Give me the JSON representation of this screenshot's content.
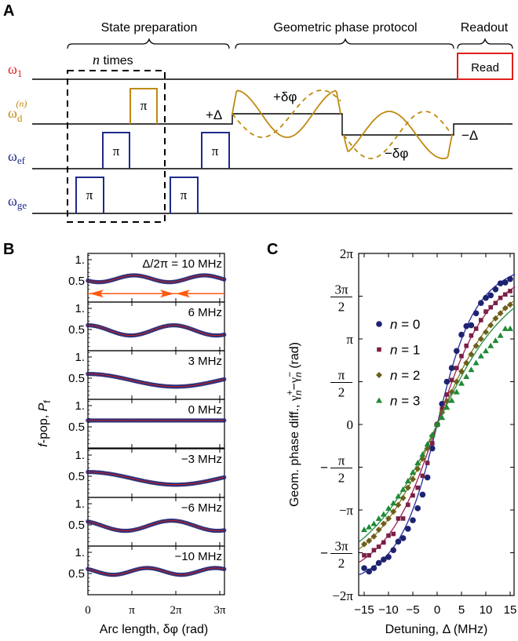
{
  "panels": {
    "a": "A",
    "b": "B",
    "c": "C"
  },
  "diagram": {
    "sections": [
      "State preparation",
      "Geometric phase protocol",
      "Readout"
    ],
    "repeat_label": {
      "var": "n",
      "text": " times"
    },
    "channels": [
      {
        "symbol": "ω",
        "sub": "1",
        "sup": "",
        "color": "#e0201c"
      },
      {
        "symbol": "ω",
        "sub": "d",
        "sup": "(n)",
        "color": "#c08a10"
      },
      {
        "symbol": "ω",
        "sub": "ef",
        "sup": "",
        "color": "#1e2a8a"
      },
      {
        "symbol": "ω",
        "sub": "ge",
        "sup": "",
        "color": "#1e2a8a"
      }
    ],
    "pulse_label": "π",
    "read_label": "Read",
    "plus_delta": "+Δ",
    "minus_delta": "−Δ",
    "plus_dphi": "+δφ",
    "minus_dphi": "−δφ",
    "pulse_color": "#c08a10",
    "read_color": "#e0201c"
  },
  "chart_data": [
    {
      "type": "scatter",
      "panel": "B",
      "title": "",
      "xlabel": "Arc length, δφ (rad)",
      "ylabel_italic": "f",
      "ylabel_mid": "-pop, ",
      "ylabel_sym": "P",
      "ylabel_sub": "f",
      "xlim_pi": [
        0,
        3.1
      ],
      "ylim": [
        0,
        1.15
      ],
      "x_ticks": [
        {
          "value_pi": 0,
          "label": "0"
        },
        {
          "value_pi": 1,
          "label": "π"
        },
        {
          "value_pi": 2,
          "label": "2π"
        },
        {
          "value_pi": 3,
          "label": "3π"
        }
      ],
      "y_ticks": [
        {
          "value": 0.5,
          "label": "0.5"
        },
        {
          "value": 1,
          "label": "1."
        }
      ],
      "marker_color": "#1e2370",
      "fit_color": "#d02020",
      "arrow_color": "#ff5a10",
      "subplots": [
        {
          "label": "Δ/2π = 10 MHz",
          "detuning_MHz": 10,
          "mean": 0.55,
          "amp": 0.08,
          "period_pi": 1.6,
          "peak_pi": 1.05
        },
        {
          "label": "6 MHz",
          "detuning_MHz": 6,
          "mean": 0.48,
          "amp": 0.12,
          "period_pi": 1.95,
          "peak_pi": 0.0
        },
        {
          "label": "3 MHz",
          "detuning_MHz": 3,
          "mean": 0.45,
          "amp": 0.15,
          "period_pi": 4.0,
          "peak_pi": 0.0
        },
        {
          "label": "0 MHz",
          "detuning_MHz": 0,
          "mean": 0.65,
          "amp": 0.0,
          "period_pi": 2.0,
          "peak_pi": 0.0
        },
        {
          "label": "−3 MHz",
          "detuning_MHz": -3,
          "mean": 0.45,
          "amp": 0.15,
          "period_pi": 4.0,
          "peak_pi": 0.0
        },
        {
          "label": "−6 MHz",
          "detuning_MHz": -6,
          "mean": 0.48,
          "amp": 0.12,
          "period_pi": 2.1,
          "peak_pi": 1.9
        },
        {
          "label": "−10 MHz",
          "detuning_MHz": -10,
          "mean": 0.55,
          "amp": 0.08,
          "period_pi": 1.55,
          "peak_pi": 1.35
        }
      ]
    },
    {
      "type": "scatter",
      "panel": "C",
      "xlabel": "Detuning, Δ (MHz)",
      "ylabel": {
        "prefix": "Geom. phase diff., ",
        "g": "γ",
        "sup1": "+",
        "sub1": "n",
        "minus": "−",
        "sup2": "−",
        "sub2": "n",
        "suffix": " (rad)"
      },
      "xlim": [
        -16,
        16
      ],
      "ylim_pi": [
        -2,
        2
      ],
      "x_ticks": [
        {
          "value": -15,
          "label": "−15"
        },
        {
          "value": -10,
          "label": "−10"
        },
        {
          "value": -5,
          "label": "−5"
        },
        {
          "value": 0,
          "label": "0"
        },
        {
          "value": 5,
          "label": "5"
        },
        {
          "value": 10,
          "label": "10"
        },
        {
          "value": 15,
          "label": "15"
        }
      ],
      "y_ticks": [
        {
          "value_pi": 2,
          "label": "2π"
        },
        {
          "value_pi": 1.5,
          "sign": "",
          "num": "3π",
          "den": "2"
        },
        {
          "value_pi": 1,
          "label": "π"
        },
        {
          "value_pi": 0.5,
          "sign": "",
          "num": "π",
          "den": "2"
        },
        {
          "value_pi": 0,
          "label": "0"
        },
        {
          "value_pi": -0.5,
          "sign": "−",
          "num": "π",
          "den": "2"
        },
        {
          "value_pi": -1,
          "label": "−π"
        },
        {
          "value_pi": -1.5,
          "sign": "−",
          "num": "3π",
          "den": "2"
        },
        {
          "value_pi": -2,
          "label": "−2π"
        }
      ],
      "x": [
        -15,
        -14,
        -13,
        -12,
        -11,
        -10,
        -9,
        -8,
        -7,
        -6,
        -5,
        -4,
        -3,
        -2,
        -1,
        0,
        1,
        2,
        3,
        4,
        5,
        6,
        7,
        8,
        9,
        10,
        11,
        12,
        13,
        14,
        15
      ],
      "series": [
        {
          "name": "n = 0",
          "var": "n",
          "eq": " = 0",
          "marker": "circle",
          "color": "#1e2370",
          "line_color": "#2a2aa0",
          "fit_c": 8.7,
          "values_pi": [
            -1.68,
            -1.72,
            -1.68,
            -1.62,
            -1.58,
            -1.55,
            -1.47,
            -1.37,
            -1.33,
            -1.22,
            -1.12,
            -0.98,
            -0.82,
            -0.62,
            -0.28,
            0.0,
            0.24,
            0.5,
            0.66,
            0.86,
            1.05,
            1.15,
            1.16,
            1.3,
            1.42,
            1.48,
            1.51,
            1.58,
            1.65,
            1.66,
            1.7
          ]
        },
        {
          "name": "n = 1",
          "var": "n",
          "eq": " = 1",
          "marker": "square",
          "color": "#7a1f45",
          "line_color": "#a0205a",
          "fit_c": 11.8,
          "values_pi": [
            -1.53,
            -1.53,
            -1.47,
            -1.43,
            -1.38,
            -1.3,
            -1.28,
            -1.1,
            -1.1,
            -0.94,
            -0.83,
            -0.74,
            -0.6,
            -0.45,
            -0.22,
            0.0,
            0.18,
            0.35,
            0.52,
            0.66,
            0.8,
            0.92,
            1.04,
            1.12,
            1.22,
            1.32,
            1.37,
            1.42,
            1.48,
            1.52,
            1.56
          ]
        },
        {
          "name": "n = 2",
          "var": "n",
          "eq": " = 2",
          "marker": "diamond",
          "color": "#6e5e1a",
          "line_color": "#8a7a20",
          "fit_c": 15.1,
          "values_pi": [
            -1.4,
            -1.36,
            -1.31,
            -1.23,
            -1.16,
            -1.1,
            -1.02,
            -0.94,
            -0.86,
            -0.74,
            -0.64,
            -0.52,
            -0.4,
            -0.28,
            -0.13,
            0.0,
            0.14,
            0.27,
            0.38,
            0.5,
            0.62,
            0.72,
            0.82,
            0.92,
            1.0,
            1.08,
            1.16,
            1.24,
            1.3,
            1.36,
            1.4
          ]
        },
        {
          "name": "n = 3",
          "var": "n",
          "eq": " = 3",
          "marker": "triangle",
          "color": "#1f8a35",
          "line_color": "#2a8a40",
          "fit_c": 17.0,
          "values_pi": [
            -1.23,
            -1.2,
            -1.16,
            -1.1,
            -1.05,
            -0.98,
            -0.92,
            -0.84,
            -0.76,
            -0.66,
            -0.56,
            -0.45,
            -0.35,
            -0.23,
            -0.12,
            0.0,
            0.08,
            0.2,
            0.28,
            0.38,
            0.48,
            0.56,
            0.64,
            0.72,
            0.8,
            0.86,
            0.92,
            0.98,
            1.04,
            1.12,
            1.12
          ]
        }
      ]
    }
  ]
}
